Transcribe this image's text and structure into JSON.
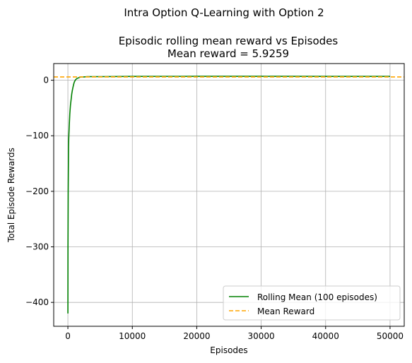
{
  "chart_data": {
    "type": "line",
    "suptitle": "Intra Option Q-Learning with Option 2",
    "title_line1": "Episodic rolling mean reward vs Episodes",
    "title_line2": "Mean reward = 5.9259",
    "xlabel": "Episodes",
    "ylabel": "Total Episode Rewards",
    "xlim": [
      -2200,
      52200
    ],
    "ylim": [
      -443,
      30
    ],
    "xticks": [
      0,
      10000,
      20000,
      30000,
      40000,
      50000
    ],
    "xtick_labels": [
      "0",
      "10000",
      "20000",
      "30000",
      "40000",
      "50000"
    ],
    "yticks": [
      -400,
      -300,
      -200,
      -100,
      0
    ],
    "ytick_labels": [
      "−400",
      "−300",
      "−200",
      "−100",
      "0"
    ],
    "grid": true,
    "legend_position": "lower-right",
    "series": [
      {
        "name": "Rolling Mean (100 episodes)",
        "color": "#008000",
        "style": "solid",
        "x": [
          0,
          20,
          50,
          100,
          150,
          200,
          300,
          400,
          500,
          600,
          700,
          800,
          900,
          1000,
          1200,
          1400,
          1600,
          1800,
          2000,
          2500,
          3000,
          5000,
          10000,
          20000,
          30000,
          40000,
          50000
        ],
        "y": [
          -420,
          -300,
          -200,
          -120,
          -100,
          -85,
          -60,
          -45,
          -35,
          -25,
          -18,
          -12,
          -7,
          -3,
          1,
          3,
          4,
          5,
          6,
          6,
          6.5,
          6.5,
          6.8,
          7,
          7,
          6.8,
          6.8
        ]
      },
      {
        "name": "Mean Reward",
        "color": "#ffa500",
        "style": "dashed",
        "y_value": 5.9259
      }
    ]
  }
}
